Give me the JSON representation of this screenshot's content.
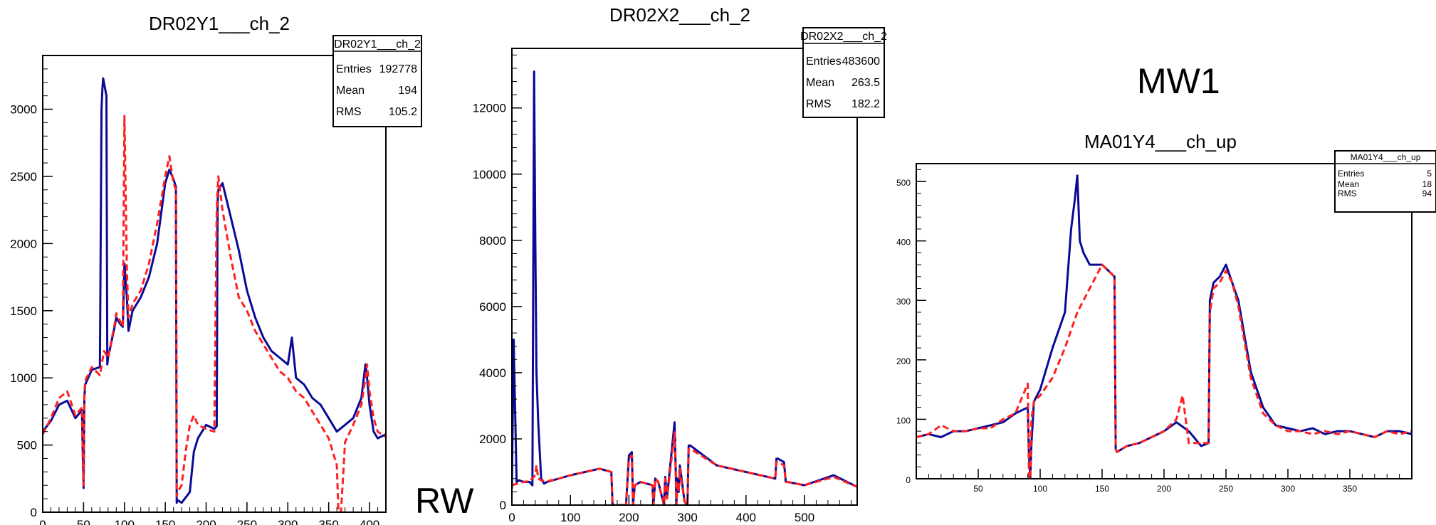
{
  "labels": {
    "rw": "RW",
    "mw1": "MW1"
  },
  "colors": {
    "series_a": "#0a0a96",
    "series_b": "#ff2020",
    "frame": "#000000"
  },
  "chart_data": [
    {
      "type": "line",
      "title": "DR02Y1___ch_2",
      "xlim": [
        0,
        420
      ],
      "ylim": [
        0,
        3400
      ],
      "xticks": [
        0,
        50,
        100,
        150,
        200,
        250,
        300,
        350,
        400
      ],
      "yticks": [
        0,
        500,
        1000,
        1500,
        2000,
        2500,
        3000
      ],
      "stats": {
        "name": "DR02Y1___ch_2",
        "rows": [
          {
            "label": "Entries",
            "value": "192778"
          },
          {
            "label": "Mean",
            "value": "194"
          },
          {
            "label": "RMS",
            "value": "105.2"
          }
        ]
      },
      "series": [
        {
          "style": "solid",
          "color": "#0a0a96",
          "x": [
            0,
            10,
            20,
            30,
            40,
            48,
            49,
            50,
            51,
            52,
            60,
            70,
            72,
            73,
            74,
            78,
            79,
            80,
            88,
            90,
            95,
            98,
            100,
            103,
            105,
            110,
            120,
            130,
            140,
            150,
            155,
            160,
            163,
            164,
            165,
            170,
            180,
            185,
            190,
            200,
            210,
            213,
            214,
            215,
            220,
            230,
            240,
            250,
            260,
            270,
            280,
            290,
            300,
            305,
            310,
            320,
            330,
            340,
            350,
            360,
            370,
            380,
            390,
            395,
            397,
            400,
            405,
            410,
            420
          ],
          "y": [
            600,
            680,
            800,
            830,
            700,
            760,
            450,
            180,
            850,
            950,
            1060,
            1080,
            3000,
            3150,
            3230,
            3100,
            1100,
            1150,
            1380,
            1450,
            1400,
            1380,
            1850,
            1600,
            1350,
            1500,
            1600,
            1750,
            2000,
            2450,
            2550,
            2480,
            2420,
            70,
            90,
            70,
            150,
            450,
            550,
            650,
            620,
            640,
            2300,
            2400,
            2450,
            2200,
            1950,
            1650,
            1450,
            1300,
            1200,
            1150,
            1100,
            1300,
            1000,
            950,
            850,
            800,
            700,
            600,
            650,
            700,
            850,
            1100,
            1000,
            800,
            600,
            550,
            580
          ]
        },
        {
          "style": "dashed",
          "color": "#ff2020",
          "x": [
            0,
            10,
            20,
            30,
            40,
            48,
            49,
            50,
            51,
            52,
            60,
            70,
            75,
            80,
            88,
            90,
            95,
            98,
            100,
            103,
            105,
            110,
            120,
            130,
            140,
            150,
            155,
            160,
            163,
            164,
            165,
            170,
            175,
            180,
            185,
            190,
            200,
            210,
            213,
            214,
            215,
            220,
            230,
            240,
            250,
            260,
            270,
            280,
            290,
            300,
            310,
            320,
            330,
            340,
            350,
            355,
            360,
            362,
            365,
            368,
            370,
            380,
            390,
            395,
            397,
            400,
            405,
            410,
            420
          ],
          "y": [
            580,
            700,
            850,
            900,
            720,
            780,
            460,
            200,
            870,
            980,
            1080,
            1020,
            1200,
            1150,
            1400,
            1480,
            1420,
            1380,
            2950,
            1800,
            1450,
            1550,
            1650,
            1850,
            2150,
            2500,
            2650,
            2450,
            2400,
            120,
            150,
            200,
            450,
            650,
            720,
            650,
            620,
            600,
            2250,
            2400,
            2500,
            2250,
            1900,
            1600,
            1500,
            1350,
            1250,
            1150,
            1050,
            1000,
            900,
            850,
            750,
            650,
            550,
            450,
            350,
            0,
            0,
            300,
            520,
            650,
            800,
            1000,
            1100,
            900,
            700,
            600,
            560
          ]
        }
      ]
    },
    {
      "type": "line",
      "title": "DR02X2___ch_2",
      "xlim": [
        0,
        590
      ],
      "ylim": [
        0,
        13800
      ],
      "xticks": [
        0,
        100,
        200,
        300,
        400,
        500
      ],
      "yticks": [
        0,
        2000,
        4000,
        6000,
        8000,
        10000,
        12000
      ],
      "stats": {
        "name": "DR02X2___ch_2",
        "rows": [
          {
            "label": "Entries",
            "value": "483600"
          },
          {
            "label": "Mean",
            "value": "263.5"
          },
          {
            "label": "RMS",
            "value": "182.2"
          }
        ]
      },
      "series": [
        {
          "style": "solid",
          "color": "#0a0a96",
          "x": [
            0,
            3,
            8,
            12,
            20,
            30,
            35,
            38,
            40,
            42,
            45,
            50,
            55,
            60,
            80,
            100,
            150,
            170,
            172,
            175,
            195,
            200,
            205,
            207,
            210,
            220,
            240,
            242,
            245,
            250,
            260,
            262,
            265,
            278,
            280,
            281,
            283,
            285,
            287,
            290,
            295,
            300,
            302,
            305,
            350,
            400,
            450,
            452,
            455,
            465,
            468,
            470,
            500,
            550,
            590
          ],
          "y": [
            500,
            5000,
            700,
            750,
            700,
            700,
            600,
            13100,
            8000,
            4000,
            2500,
            800,
            650,
            700,
            800,
            900,
            1100,
            1000,
            0,
            0,
            0,
            1500,
            1600,
            0,
            600,
            700,
            600,
            0,
            800,
            700,
            0,
            850,
            200,
            2500,
            1000,
            0,
            800,
            400,
            1200,
            800,
            100,
            0,
            1800,
            1800,
            1200,
            1000,
            800,
            1400,
            1400,
            1300,
            700,
            700,
            600,
            900,
            550
          ]
        },
        {
          "style": "dashed",
          "color": "#ff2020",
          "x": [
            0,
            10,
            20,
            30,
            40,
            42,
            45,
            50,
            60,
            80,
            100,
            150,
            170,
            172,
            175,
            195,
            200,
            205,
            207,
            210,
            220,
            240,
            242,
            245,
            250,
            260,
            262,
            265,
            278,
            280,
            281,
            283,
            285,
            287,
            290,
            295,
            300,
            302,
            305,
            350,
            400,
            450,
            452,
            455,
            465,
            468,
            470,
            500,
            550,
            590
          ],
          "y": [
            600,
            650,
            700,
            720,
            900,
            1200,
            800,
            750,
            720,
            800,
            900,
            1100,
            1000,
            0,
            0,
            0,
            1400,
            1500,
            0,
            600,
            700,
            600,
            0,
            800,
            700,
            0,
            800,
            200,
            2200,
            900,
            0,
            700,
            400,
            1100,
            700,
            100,
            0,
            1700,
            1700,
            1200,
            1000,
            800,
            1300,
            1300,
            1200,
            700,
            700,
            600,
            850,
            550
          ]
        }
      ]
    },
    {
      "type": "line",
      "title": "MA01Y4___ch_up",
      "xlim": [
        0,
        400
      ],
      "ylim": [
        0,
        530
      ],
      "xticks": [
        50,
        100,
        150,
        200,
        250,
        300,
        350
      ],
      "yticks": [
        0,
        100,
        200,
        300,
        400,
        500
      ],
      "stats": {
        "name": "MA01Y4___ch_up",
        "rows": [
          {
            "label": "Entries",
            "value": "5"
          },
          {
            "label": "Mean",
            "value": "18"
          },
          {
            "label": "RMS",
            "value": "94"
          }
        ]
      },
      "series": [
        {
          "style": "solid",
          "color": "#0a0a96",
          "x": [
            0,
            10,
            20,
            30,
            40,
            50,
            60,
            70,
            80,
            90,
            91,
            92,
            93,
            95,
            100,
            110,
            120,
            125,
            128,
            130,
            132,
            135,
            140,
            150,
            160,
            161,
            162,
            170,
            180,
            190,
            200,
            210,
            220,
            230,
            236,
            237,
            240,
            245,
            250,
            255,
            260,
            270,
            280,
            290,
            300,
            310,
            320,
            330,
            340,
            350,
            360,
            370,
            380,
            390,
            400
          ],
          "y": [
            70,
            75,
            70,
            80,
            80,
            85,
            90,
            95,
            110,
            120,
            40,
            0,
            60,
            130,
            150,
            220,
            280,
            420,
            470,
            510,
            400,
            380,
            360,
            360,
            340,
            50,
            45,
            55,
            60,
            70,
            80,
            95,
            80,
            55,
            60,
            300,
            330,
            340,
            360,
            330,
            300,
            180,
            120,
            90,
            85,
            80,
            85,
            75,
            80,
            80,
            75,
            70,
            80,
            80,
            75
          ]
        },
        {
          "style": "dashed",
          "color": "#ff2020",
          "x": [
            0,
            10,
            20,
            30,
            40,
            50,
            60,
            70,
            80,
            90,
            91,
            92,
            93,
            95,
            100,
            110,
            120,
            130,
            140,
            150,
            160,
            161,
            162,
            170,
            180,
            190,
            200,
            210,
            215,
            220,
            230,
            236,
            237,
            240,
            245,
            250,
            255,
            260,
            270,
            280,
            290,
            300,
            310,
            320,
            330,
            340,
            350,
            360,
            370,
            380,
            390,
            400
          ],
          "y": [
            70,
            75,
            90,
            80,
            80,
            85,
            85,
            100,
            110,
            160,
            0,
            0,
            100,
            130,
            140,
            170,
            220,
            280,
            320,
            360,
            340,
            50,
            45,
            55,
            60,
            70,
            80,
            100,
            140,
            60,
            60,
            60,
            280,
            320,
            330,
            350,
            330,
            290,
            170,
            110,
            90,
            80,
            80,
            75,
            80,
            75,
            80,
            75,
            70,
            80,
            75,
            80
          ]
        }
      ]
    }
  ]
}
